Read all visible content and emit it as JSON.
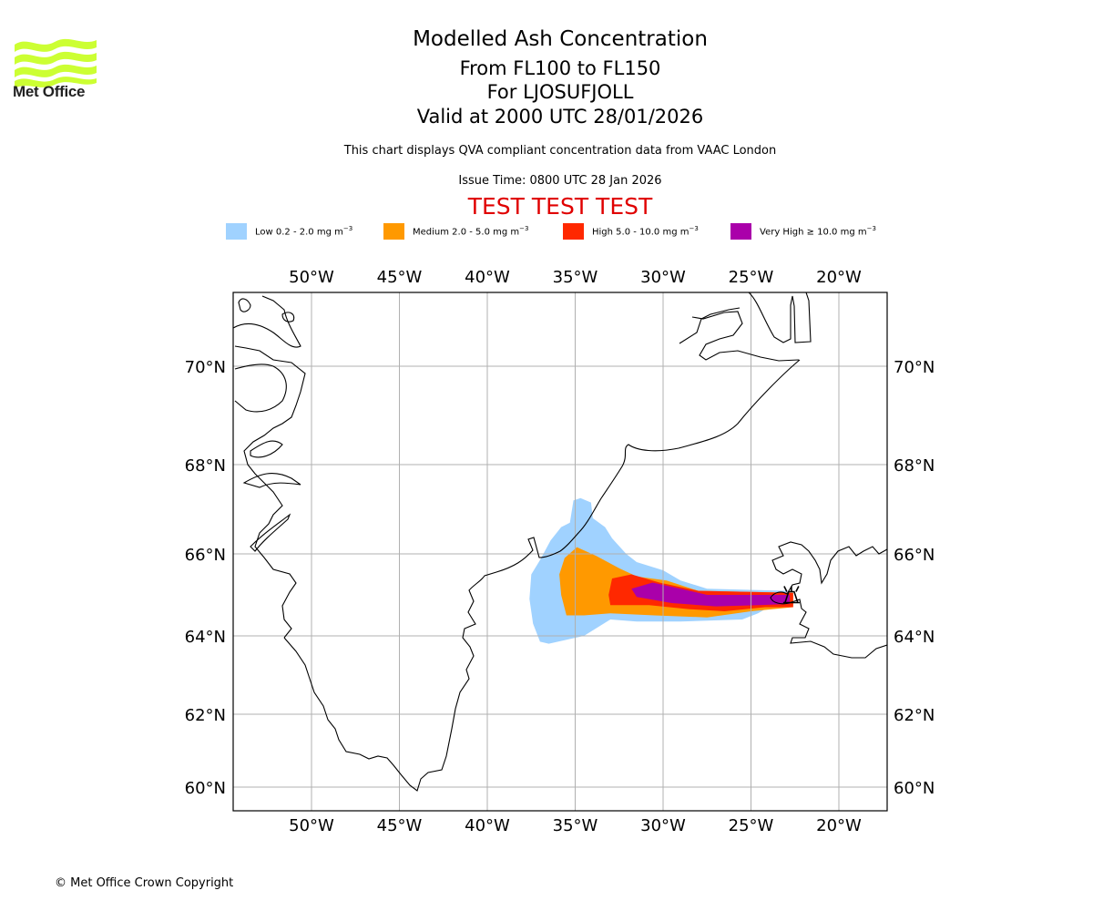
{
  "logo": {
    "name": "Met Office",
    "text": "Met Office",
    "color": "#ccff33"
  },
  "title": {
    "line1": "Modelled Ash Concentration",
    "line2": "From FL100 to FL150",
    "line3": "For LJOSUFJOLL",
    "line4": "Valid at 2000 UTC 28/01/2026"
  },
  "subtitle": "This chart displays QVA compliant concentration data from VAAC London",
  "issue_time": "Issue Time: 0800 UTC 28 Jan 2026",
  "test_banner": "TEST TEST TEST",
  "legend": [
    {
      "label": "Low 0.2 - 2.0 mg m",
      "unit_exp": "−3",
      "color": "#a0d2ff"
    },
    {
      "label": "Medium 2.0 - 5.0 mg m",
      "unit_exp": "−3",
      "color": "#ff9900"
    },
    {
      "label": "High 5.0 - 10.0 mg m",
      "unit_exp": "−3",
      "color": "#ff2800"
    },
    {
      "label": "Very High  ≥  10.0 mg m",
      "unit_exp": "−3",
      "color": "#aa00aa"
    }
  ],
  "copyright": "© Met Office Crown Copyright",
  "chart_data": {
    "type": "heatmap",
    "title": "Modelled Ash Concentration",
    "projection": "map",
    "extent": {
      "lon": [
        -54.5,
        -17.2
      ],
      "lat": [
        59.5,
        71.5
      ]
    },
    "grid": true,
    "x_ticks": [
      "50°W",
      "45°W",
      "40°W",
      "35°W",
      "30°W",
      "25°W",
      "20°W"
    ],
    "x_tick_values": [
      -50,
      -45,
      -40,
      -35,
      -30,
      -25,
      -20
    ],
    "y_ticks": [
      "70°N",
      "68°N",
      "66°N",
      "64°N",
      "62°N",
      "60°N"
    ],
    "y_tick_values": [
      70,
      68,
      66,
      64,
      62,
      60
    ],
    "volcano": {
      "name": "LJOSUFJOLL",
      "lon": -22.7,
      "lat": 64.9
    },
    "legend_position": "top",
    "levels": [
      {
        "name": "Low",
        "range": "0.2 - 2.0 mg m-3",
        "color": "#a0d2ff",
        "polygon": [
          [
            -37.0,
            63.85
          ],
          [
            -37.4,
            64.3
          ],
          [
            -37.6,
            64.9
          ],
          [
            -37.5,
            65.5
          ],
          [
            -37.0,
            65.85
          ],
          [
            -36.4,
            66.3
          ],
          [
            -35.8,
            66.6
          ],
          [
            -35.3,
            66.7
          ],
          [
            -35.1,
            67.2
          ],
          [
            -34.7,
            67.25
          ],
          [
            -34.1,
            67.15
          ],
          [
            -34.0,
            66.8
          ],
          [
            -33.3,
            66.6
          ],
          [
            -32.9,
            66.35
          ],
          [
            -32.1,
            66.0
          ],
          [
            -31.5,
            65.8
          ],
          [
            -30.0,
            65.6
          ],
          [
            -29.0,
            65.35
          ],
          [
            -27.5,
            65.15
          ],
          [
            -23.0,
            65.1
          ],
          [
            -22.6,
            65.0
          ],
          [
            -22.6,
            64.75
          ],
          [
            -24.0,
            64.7
          ],
          [
            -24.6,
            64.55
          ],
          [
            -25.5,
            64.4
          ],
          [
            -29.0,
            64.35
          ],
          [
            -31.5,
            64.35
          ],
          [
            -33.0,
            64.4
          ],
          [
            -34.5,
            64.0
          ],
          [
            -36.5,
            63.8
          ]
        ]
      },
      {
        "name": "Medium",
        "range": "2.0 - 5.0 mg m-3",
        "color": "#ff9900",
        "polygon": [
          [
            -35.5,
            64.5
          ],
          [
            -35.8,
            65.0
          ],
          [
            -35.9,
            65.5
          ],
          [
            -35.6,
            65.9
          ],
          [
            -34.9,
            66.15
          ],
          [
            -33.8,
            65.95
          ],
          [
            -32.5,
            65.65
          ],
          [
            -31.5,
            65.45
          ],
          [
            -29.8,
            65.35
          ],
          [
            -28.0,
            65.1
          ],
          [
            -22.6,
            65.05
          ],
          [
            -22.6,
            64.7
          ],
          [
            -25.0,
            64.6
          ],
          [
            -27.5,
            64.45
          ],
          [
            -30.5,
            64.5
          ],
          [
            -33.0,
            64.55
          ],
          [
            -34.5,
            64.5
          ]
        ]
      },
      {
        "name": "High",
        "range": "5.0 - 10.0 mg m-3",
        "color": "#ff2800",
        "polygon": [
          [
            -33.0,
            64.75
          ],
          [
            -33.1,
            65.0
          ],
          [
            -32.9,
            65.4
          ],
          [
            -31.8,
            65.5
          ],
          [
            -30.2,
            65.3
          ],
          [
            -28.0,
            65.1
          ],
          [
            -22.6,
            65.05
          ],
          [
            -22.6,
            64.7
          ],
          [
            -24.2,
            64.7
          ],
          [
            -26.5,
            64.6
          ],
          [
            -28.5,
            64.65
          ],
          [
            -30.8,
            64.75
          ]
        ]
      },
      {
        "name": "Very High",
        "range": "≥ 10.0 mg m-3",
        "color": "#aa00aa",
        "polygon": [
          [
            -31.5,
            64.95
          ],
          [
            -31.8,
            65.15
          ],
          [
            -30.6,
            65.3
          ],
          [
            -29.0,
            65.15
          ],
          [
            -27.5,
            65.0
          ],
          [
            -22.8,
            65.0
          ],
          [
            -22.8,
            64.78
          ],
          [
            -24.5,
            64.75
          ],
          [
            -27.0,
            64.72
          ],
          [
            -29.5,
            64.8
          ]
        ]
      }
    ]
  }
}
